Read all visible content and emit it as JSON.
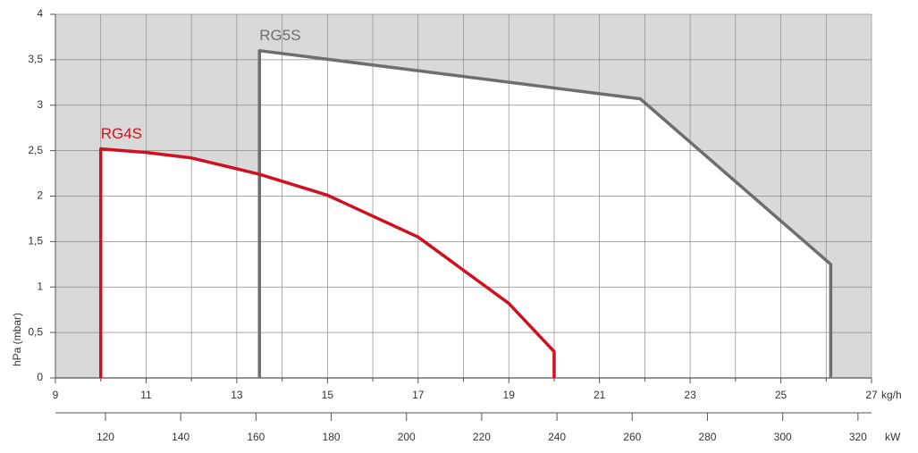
{
  "chart_data": {
    "type": "line",
    "xlabel": "kg/h",
    "ylabel": "hPa (mbar)",
    "x2label": "kW",
    "xlim": [
      9,
      27
    ],
    "ylim": [
      0,
      4
    ],
    "xticks": [
      9,
      11,
      13,
      15,
      17,
      19,
      21,
      23,
      25,
      27
    ],
    "xminorticks": [
      10,
      12,
      14,
      16,
      18,
      20,
      22,
      24,
      26
    ],
    "yticks": [
      0,
      {
        "value": 0.5,
        "label": "0,5"
      },
      1,
      {
        "value": 1.5,
        "label": "1,5"
      },
      2,
      {
        "value": 2.5,
        "label": "2,5"
      },
      3,
      {
        "value": 3.5,
        "label": "3,5"
      },
      4
    ],
    "x2lim": [
      106.7,
      323.6
    ],
    "x2ticks": [
      120,
      140,
      160,
      180,
      200,
      220,
      240,
      260,
      280,
      300,
      320
    ],
    "grid": true,
    "background": "#d9d9da",
    "fill": "#ffffff",
    "series": [
      {
        "name": "RG5S",
        "color": "#6d6e71",
        "x": [
          13.5,
          13.5,
          21.9,
          26.1,
          26.1
        ],
        "values": [
          0,
          3.6,
          3.07,
          1.25,
          0
        ]
      },
      {
        "name": "RG4S",
        "color": "#d0101e",
        "x": [
          10,
          10,
          11,
          12,
          13.5,
          15,
          17,
          19,
          20,
          20
        ],
        "values": [
          0,
          2.52,
          2.48,
          2.42,
          2.24,
          2.01,
          1.55,
          0.82,
          0.29,
          0
        ]
      }
    ]
  }
}
